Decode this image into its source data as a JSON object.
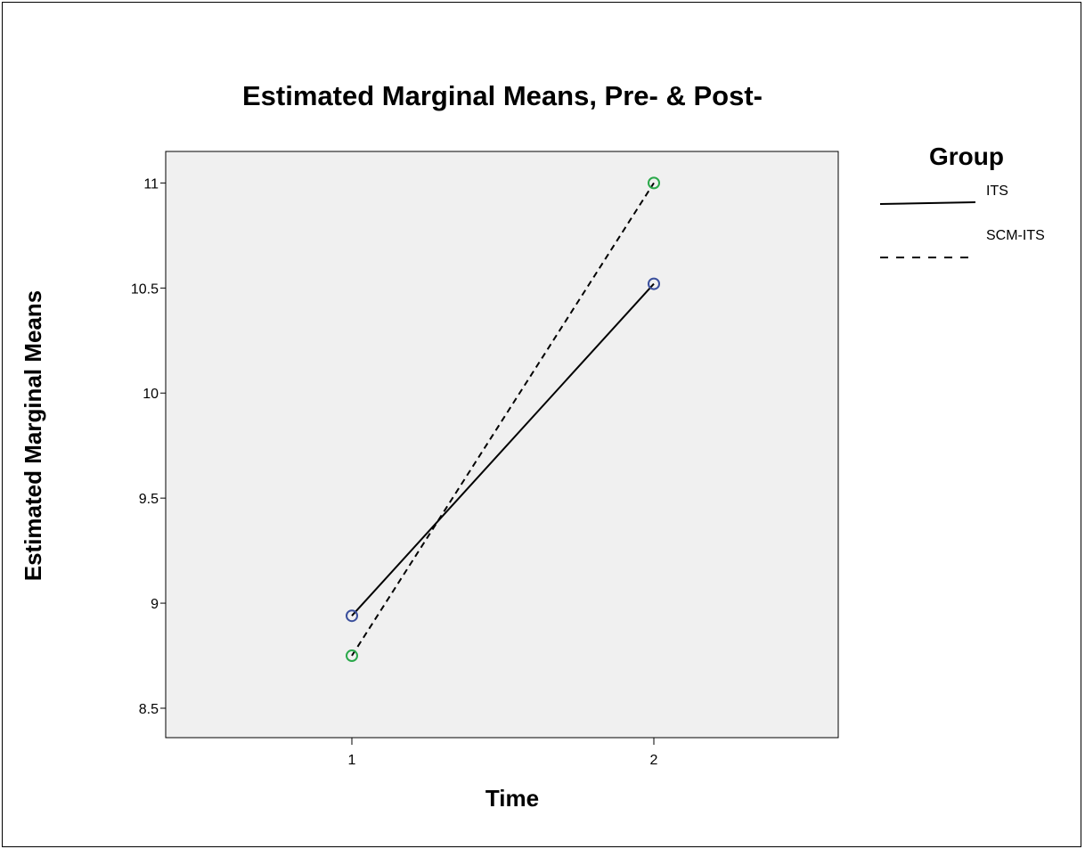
{
  "chart_data": {
    "type": "line",
    "title": "Estimated Marginal Means, Pre- & Post-",
    "xlabel": "Time",
    "ylabel": "Estimated Marginal Means",
    "categories": [
      "1",
      "2"
    ],
    "yticks": [
      "8.5",
      "9",
      "9.5",
      "10",
      "10.5",
      "11"
    ],
    "ylim": [
      8.36,
      11.15
    ],
    "legend": {
      "title": "Group",
      "placement": "right"
    },
    "series": [
      {
        "name": "ITS",
        "values": [
          8.94,
          10.52
        ],
        "line": "solid",
        "marker_color": "#3a4f9c"
      },
      {
        "name": "SCM-ITS",
        "values": [
          8.75,
          11.0
        ],
        "line": "dashed",
        "marker_color": "#2aa84a"
      }
    ],
    "plot_background": "#f0f0f0",
    "grid": false
  }
}
